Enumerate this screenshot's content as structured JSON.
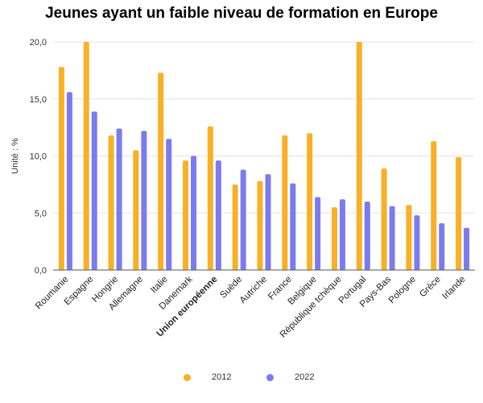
{
  "chart_data": {
    "type": "bar",
    "title": "Jeunes ayant un faible niveau de formation en Europe",
    "ylabel": "Unité : %",
    "ylim": [
      0,
      20
    ],
    "yticks": [
      "0,0",
      "5,0",
      "10,0",
      "15,0",
      "20,0"
    ],
    "grid": true,
    "legend_position": "bottom",
    "categories": [
      "Roumanie",
      "Espagne",
      "Hongrie",
      "Allemagne",
      "Italie",
      "Danemark",
      "Union européenne",
      "Suède",
      "Autriche",
      "France",
      "Belgique",
      "République tchèque",
      "Portugal",
      "Pays-Bas",
      "Pologne",
      "Grèce",
      "Irlande"
    ],
    "highlight_category": "Union européenne",
    "series": [
      {
        "name": "2012",
        "color": "#F9B026",
        "values": [
          17.8,
          20.0,
          11.8,
          10.5,
          17.3,
          9.6,
          12.6,
          7.5,
          7.8,
          11.8,
          12.0,
          5.5,
          20.0,
          8.9,
          5.7,
          11.3,
          9.9
        ]
      },
      {
        "name": "2022",
        "color": "#7B7BEF",
        "values": [
          15.6,
          13.9,
          12.4,
          12.2,
          11.5,
          10.0,
          9.6,
          8.8,
          8.4,
          7.6,
          6.4,
          6.2,
          6.0,
          5.6,
          4.8,
          4.1,
          3.7
        ]
      }
    ]
  }
}
